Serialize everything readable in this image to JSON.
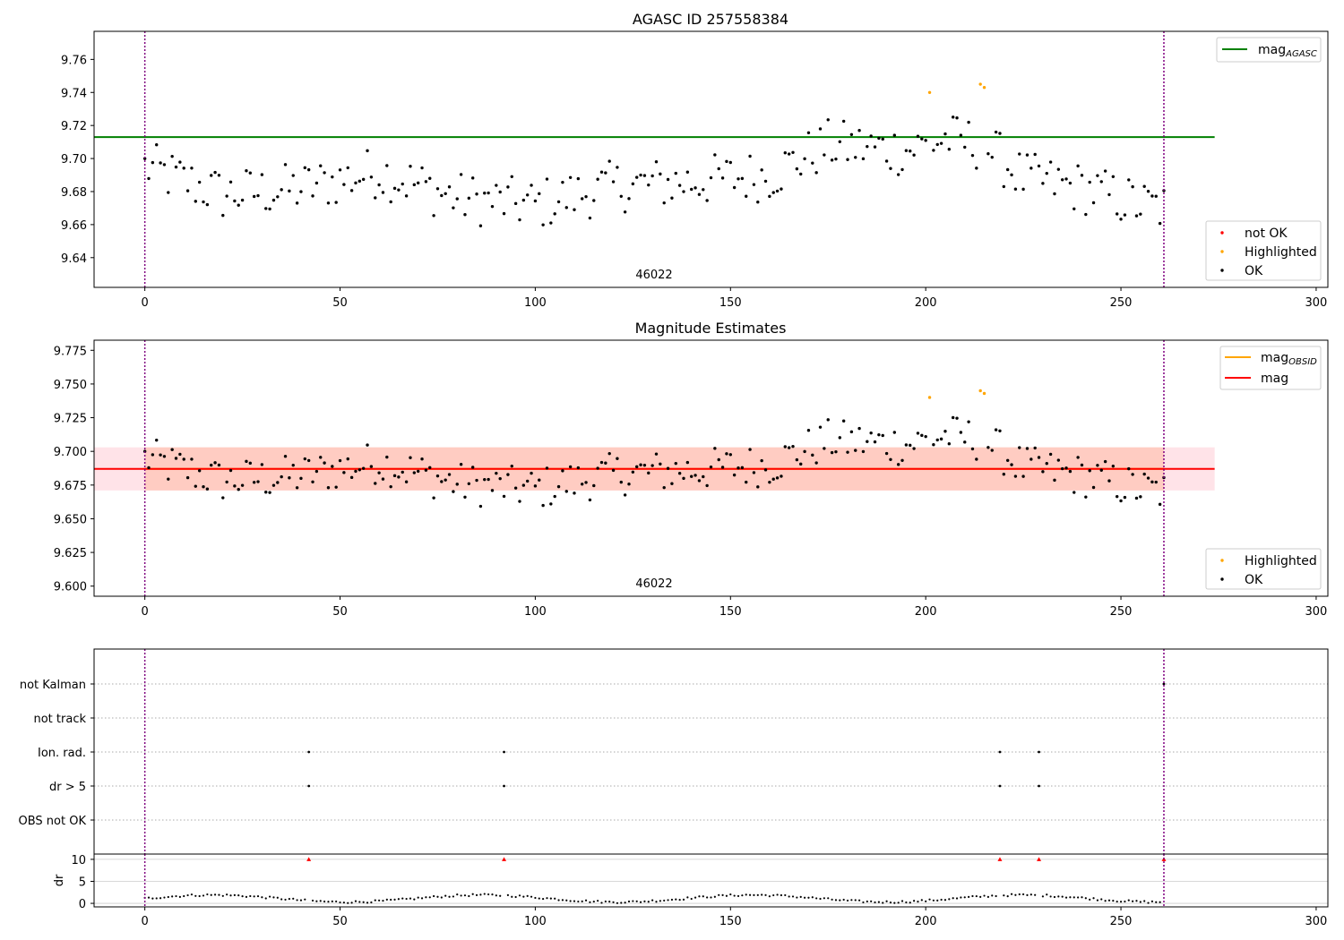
{
  "chart_data": [
    {
      "type": "scatter",
      "title": "AGASC ID 257558384",
      "xlim": [
        -13,
        303
      ],
      "ylim": [
        9.622,
        9.777
      ],
      "xticks": [
        0,
        50,
        100,
        150,
        200,
        250,
        300
      ],
      "yticks": [
        "9.64",
        "9.66",
        "9.68",
        "9.70",
        "9.72",
        "9.74",
        "9.76"
      ],
      "obsid_label": "46022",
      "obsid_x": 131,
      "vlines_x": [
        0,
        261
      ],
      "reference_line": {
        "label": "mag",
        "label_sub": "AGASC",
        "y": 9.713,
        "x_range": [
          -13,
          274
        ],
        "color": "#008000"
      },
      "legend_lines": [
        {
          "label": "mag",
          "sub": "AGASC",
          "color": "#008000"
        }
      ],
      "legend_points": [
        {
          "label": "not OK",
          "color": "#ff0000"
        },
        {
          "label": "Highlighted",
          "color": "#ffa500"
        },
        {
          "label": "OK",
          "color": "#000000"
        }
      ],
      "highlighted_points": [
        [
          201,
          9.74
        ],
        [
          214,
          9.745
        ],
        [
          215,
          9.743
        ]
      ],
      "grid": false
    },
    {
      "type": "scatter",
      "title": "Magnitude Estimates",
      "xlim": [
        -13,
        303
      ],
      "ylim": [
        9.5925,
        9.7825
      ],
      "xticks": [
        0,
        50,
        100,
        150,
        200,
        250,
        300
      ],
      "yticks": [
        "9.600",
        "9.625",
        "9.650",
        "9.675",
        "9.700",
        "9.725",
        "9.750",
        "9.775"
      ],
      "obsid_label": "46022",
      "obsid_x": 131,
      "vlines_x": [
        0,
        261
      ],
      "mag_line": {
        "label": "mag",
        "y": 9.687,
        "color": "#ff0000"
      },
      "mag_obsid_line": {
        "label": "mag",
        "sub": "OBSID",
        "y": 9.687,
        "color": "#ffa500"
      },
      "band": {
        "y_low": 9.671,
        "y_high": 9.703
      },
      "legend_lines": [
        {
          "label": "mag",
          "sub": "OBSID",
          "color": "#ffa500"
        },
        {
          "label": "mag",
          "sub": "",
          "color": "#ff0000"
        }
      ],
      "legend_points": [
        {
          "label": "Highlighted",
          "color": "#ffa500"
        },
        {
          "label": "OK",
          "color": "#000000"
        }
      ],
      "highlighted_points": [
        [
          201,
          9.74
        ],
        [
          214,
          9.745
        ],
        [
          215,
          9.743
        ]
      ],
      "grid": false
    },
    {
      "type": "scatter",
      "title": "",
      "categories": [
        "not Kalman",
        "not track",
        "Ion. rad.",
        "dr > 5",
        "OBS not OK"
      ],
      "flag_points": {
        "not Kalman": [
          261
        ],
        "not track": [],
        "Ion. rad.": [
          42,
          92,
          219,
          229
        ],
        "dr > 5": [
          42,
          92,
          219,
          229
        ],
        "OBS not OK": []
      },
      "xlim": [
        -13,
        303
      ],
      "vlines_x": [
        0,
        261
      ],
      "grid": "y-dotted"
    },
    {
      "type": "scatter",
      "ylabel": "dr",
      "ylim": [
        -0.8,
        11.2
      ],
      "yticks": [
        "0",
        "5",
        "10"
      ],
      "xticks": [
        0,
        50,
        100,
        150,
        200,
        250,
        300
      ],
      "xlim": [
        -13,
        303
      ],
      "vlines_x": [
        0,
        261
      ],
      "capped_points_x": [
        42,
        92,
        219,
        229,
        261
      ],
      "capped_value": 10
    }
  ]
}
